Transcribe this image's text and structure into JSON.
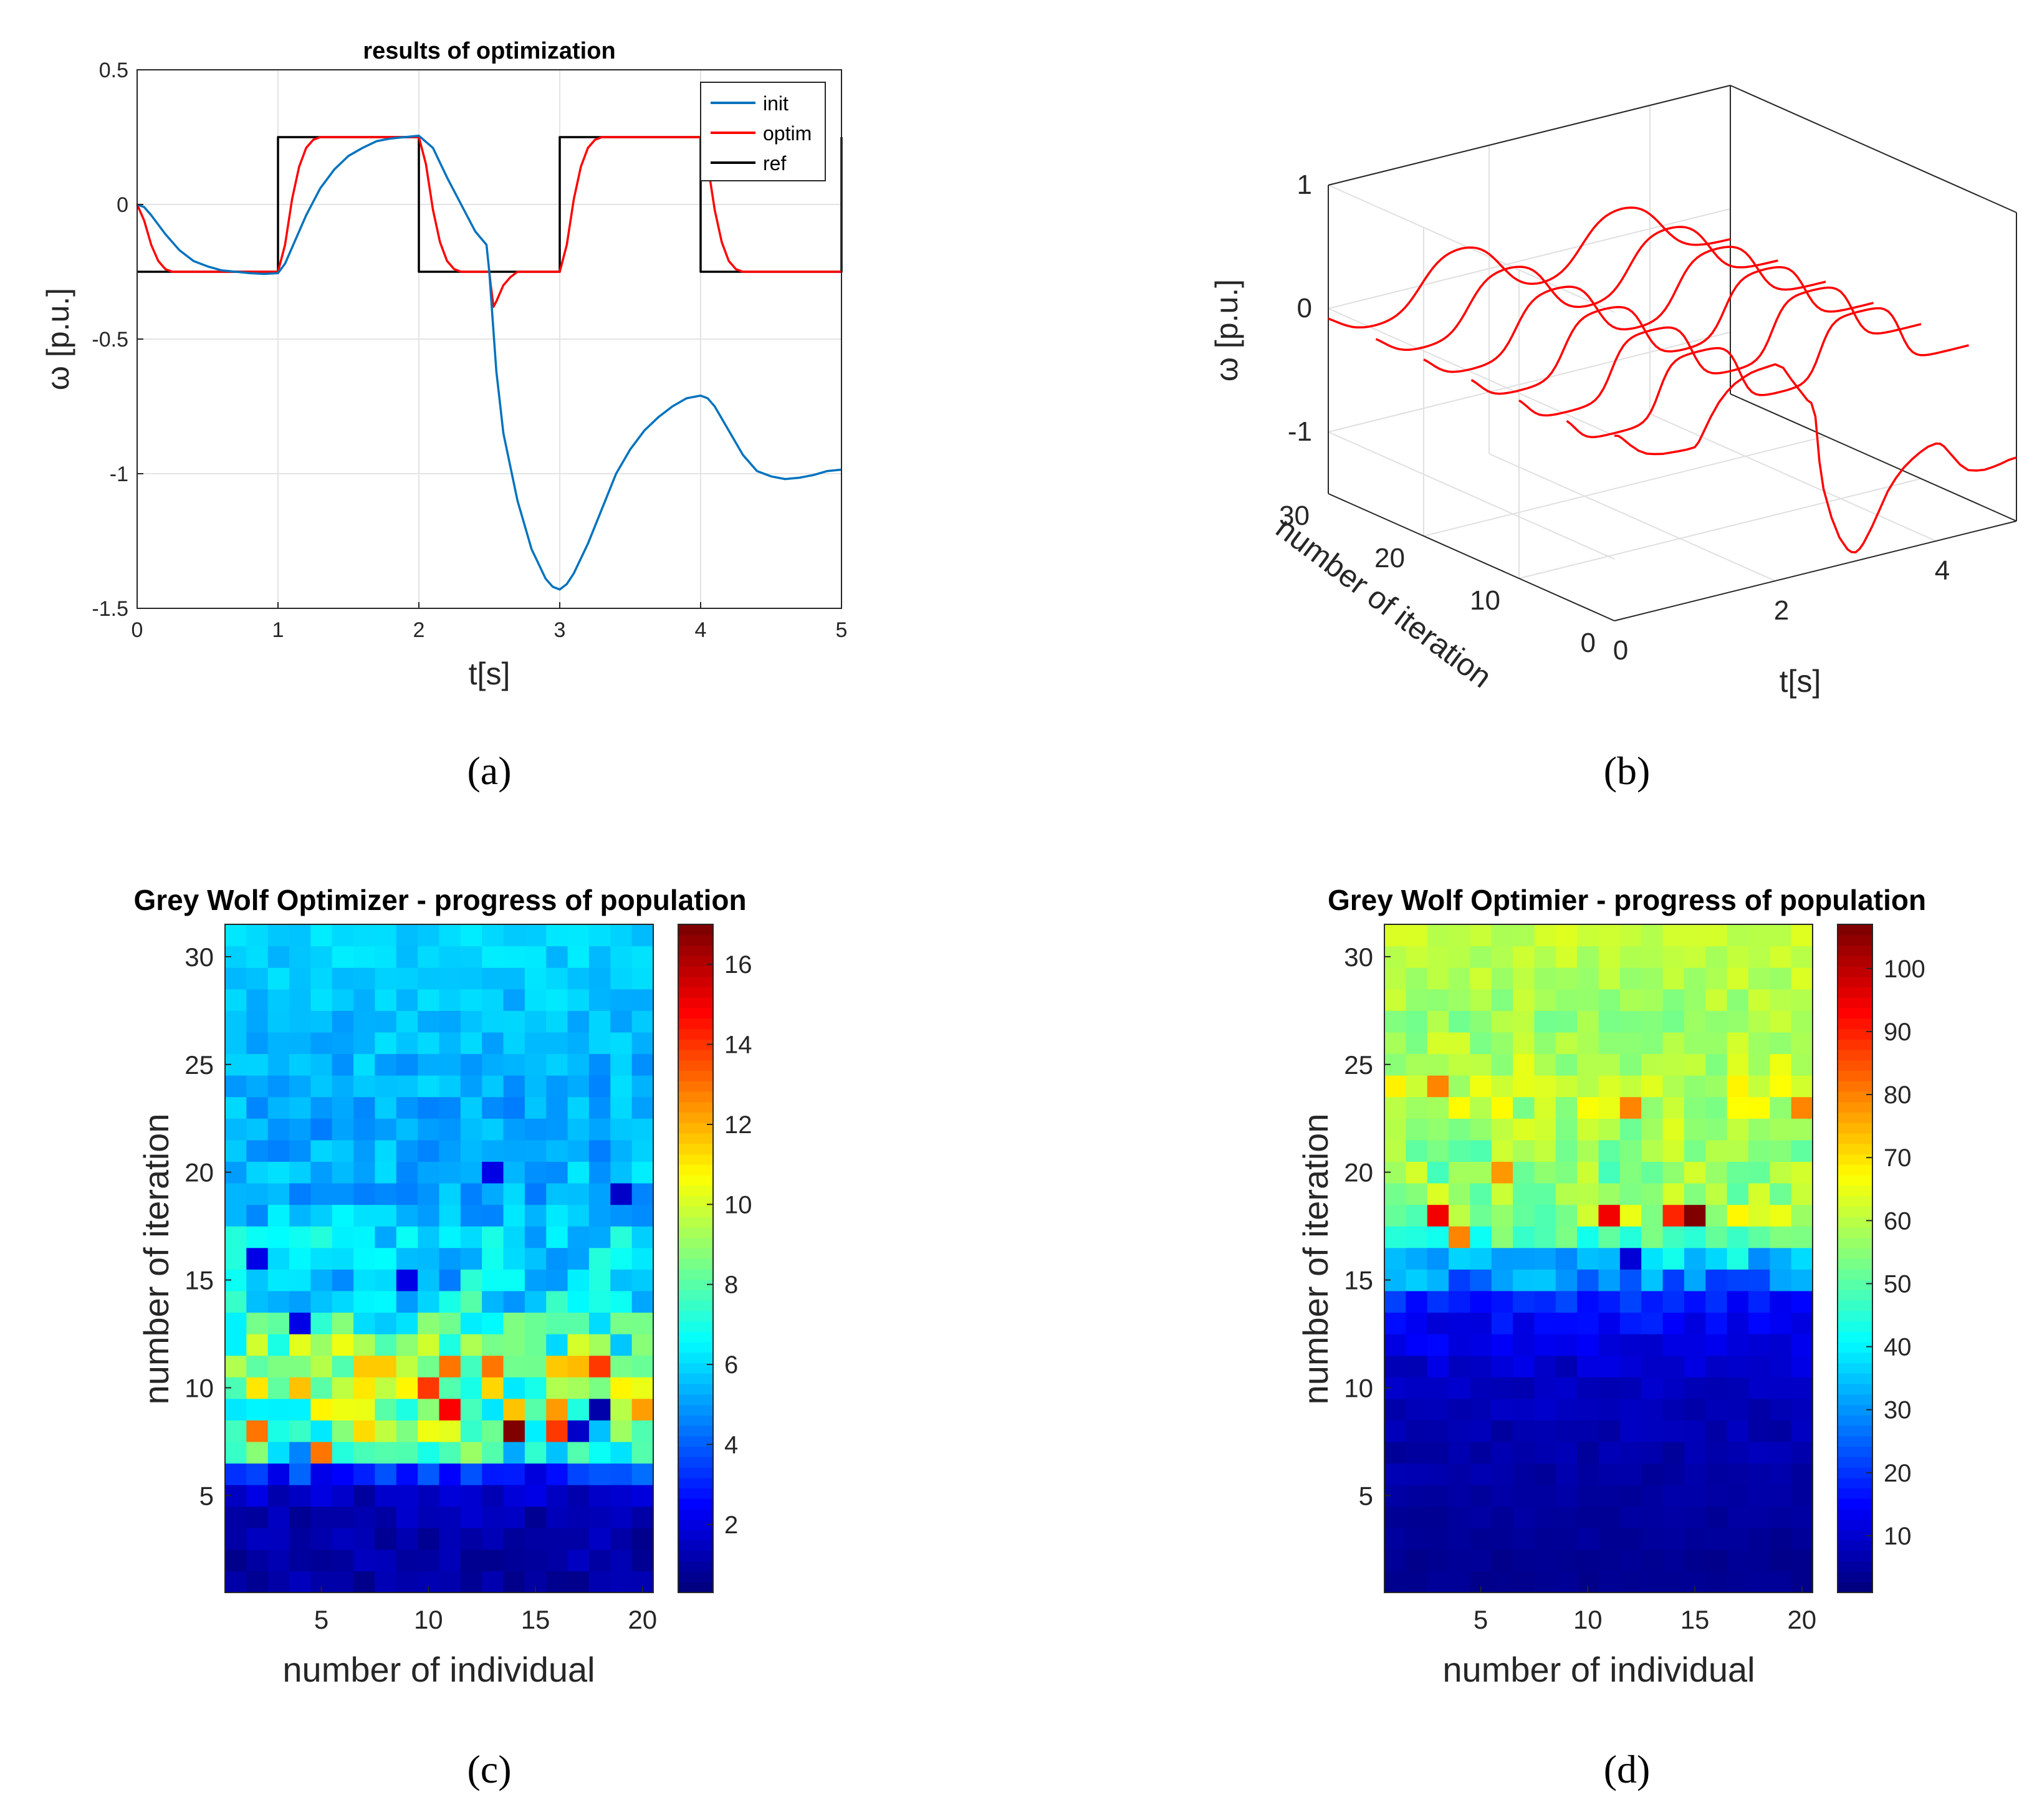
{
  "captions": {
    "a": "(a)",
    "b": "(b)",
    "c": "(c)",
    "d": "(d)"
  },
  "colors": {
    "init": "#0072BD",
    "optim": "#FF0000",
    "ref": "#000000",
    "grid": "#e3e3e3",
    "axis": "#262626"
  },
  "chart_data": [
    {
      "id": "a",
      "type": "line",
      "title": "results of optimization",
      "xlabel": "t[s]",
      "ylabel": "ω [p.u.]",
      "xlim": [
        0,
        5
      ],
      "ylim": [
        -1.5,
        0.5
      ],
      "xticks": [
        "0",
        "1",
        "2",
        "3",
        "4",
        "5"
      ],
      "yticks": [
        "0.5",
        "0",
        "-0.5",
        "-1",
        "-1.5"
      ],
      "grid": true,
      "legend_position": "top-right",
      "series": [
        {
          "name": "init",
          "x": [
            0,
            0.05,
            0.1,
            0.2,
            0.3,
            0.4,
            0.5,
            0.6,
            0.7,
            0.8,
            0.9,
            1.0,
            1.05,
            1.1,
            1.2,
            1.3,
            1.4,
            1.5,
            1.6,
            1.7,
            1.8,
            1.9,
            2.0,
            2.1,
            2.2,
            2.3,
            2.4,
            2.48,
            2.5,
            2.52,
            2.55,
            2.6,
            2.7,
            2.8,
            2.9,
            2.95,
            3.0,
            3.05,
            3.1,
            3.2,
            3.3,
            3.4,
            3.5,
            3.6,
            3.7,
            3.8,
            3.9,
            4.0,
            4.05,
            4.1,
            4.2,
            4.3,
            4.4,
            4.5,
            4.6,
            4.7,
            4.8,
            4.9,
            5.0
          ],
          "y": [
            0,
            -0.01,
            -0.04,
            -0.11,
            -0.17,
            -0.21,
            -0.23,
            -0.245,
            -0.25,
            -0.255,
            -0.258,
            -0.255,
            -0.22,
            -0.16,
            -0.04,
            0.06,
            0.13,
            0.18,
            0.21,
            0.235,
            0.245,
            0.25,
            0.255,
            0.21,
            0.1,
            0.0,
            -0.1,
            -0.15,
            -0.25,
            -0.4,
            -0.62,
            -0.85,
            -1.1,
            -1.28,
            -1.39,
            -1.42,
            -1.43,
            -1.41,
            -1.37,
            -1.26,
            -1.13,
            -1.0,
            -0.91,
            -0.84,
            -0.79,
            -0.75,
            -0.72,
            -0.71,
            -0.72,
            -0.75,
            -0.84,
            -0.93,
            -0.99,
            -1.01,
            -1.02,
            -1.015,
            -1.005,
            -0.99,
            -0.985
          ]
        },
        {
          "name": "optim",
          "x": [
            0,
            0.05,
            0.1,
            0.15,
            0.2,
            0.25,
            0.3,
            0.4,
            0.5,
            1.0,
            1.05,
            1.1,
            1.15,
            1.2,
            1.25,
            1.3,
            1.4,
            1.5,
            2.0,
            2.05,
            2.1,
            2.15,
            2.2,
            2.25,
            2.3,
            2.35,
            2.4,
            2.45,
            2.5,
            2.51,
            2.53,
            2.55,
            2.6,
            2.65,
            2.7,
            2.8,
            3.0,
            3.05,
            3.1,
            3.15,
            3.2,
            3.25,
            3.3,
            3.4,
            3.5,
            4.0,
            4.05,
            4.1,
            4.15,
            4.2,
            4.25,
            4.3,
            4.4,
            4.5,
            5.0
          ],
          "y": [
            0,
            -0.06,
            -0.15,
            -0.21,
            -0.24,
            -0.25,
            -0.25,
            -0.25,
            -0.25,
            -0.25,
            -0.15,
            0.02,
            0.14,
            0.21,
            0.24,
            0.25,
            0.25,
            0.25,
            0.25,
            0.15,
            -0.02,
            -0.14,
            -0.21,
            -0.24,
            -0.25,
            -0.25,
            -0.25,
            -0.25,
            -0.25,
            -0.3,
            -0.38,
            -0.36,
            -0.3,
            -0.27,
            -0.25,
            -0.25,
            -0.25,
            -0.15,
            0.02,
            0.14,
            0.21,
            0.24,
            0.25,
            0.25,
            0.25,
            0.25,
            0.15,
            -0.02,
            -0.14,
            -0.21,
            -0.24,
            -0.25,
            -0.25,
            -0.25,
            -0.25
          ]
        },
        {
          "name": "ref",
          "x": [
            0,
            1,
            1,
            2,
            2,
            3,
            3,
            4,
            4,
            5,
            5
          ],
          "y": [
            -0.25,
            -0.25,
            0.25,
            0.25,
            -0.25,
            -0.25,
            0.25,
            0.25,
            -0.25,
            -0.25,
            0.25
          ]
        }
      ]
    },
    {
      "id": "b",
      "type": "line",
      "subtype": "3d-waterfall",
      "xlabel": "t[s]",
      "ylabel": "number of iteration",
      "zlabel": "ω [p.u.]",
      "xlim": [
        0,
        5
      ],
      "ylim": [
        0,
        30
      ],
      "zlim": [
        -1.5,
        1
      ],
      "xticks": [
        "0",
        "2",
        "4"
      ],
      "yticks": [
        "0",
        "10",
        "20",
        "30"
      ],
      "zticks": [
        "1",
        "0",
        "-1"
      ],
      "grid": true,
      "iterations": [
        30,
        25,
        20,
        15,
        10,
        5,
        0
      ],
      "series_color": "#FF0000"
    },
    {
      "id": "c",
      "type": "heatmap",
      "title": "Grey Wolf Optimizer - progress of population",
      "xlabel": "number of individual",
      "ylabel": "number of iteration",
      "xticks": [
        "5",
        "10",
        "15",
        "20"
      ],
      "yticks": [
        "30",
        "25",
        "20",
        "15",
        "10",
        "5"
      ],
      "colorbar_ticks": [
        "16",
        "14",
        "12",
        "10",
        "8",
        "6",
        "4",
        "2"
      ],
      "clim": [
        0.3,
        17
      ],
      "colormap": "jet",
      "rows": 31,
      "cols": 20,
      "row_profile": [
        0.8,
        0.9,
        1.0,
        1.2,
        1.4,
        3.0,
        7.0,
        8.5,
        9.0,
        9.5,
        9.0,
        8.0,
        7.2,
        6.5,
        5.8,
        6.0,
        6.0,
        5.5,
        5.2,
        5.5,
        5.2,
        5.0,
        5.2,
        5.3,
        5.4,
        5.5,
        5.5,
        5.6,
        5.7,
        5.8,
        5.8
      ],
      "row_spread": [
        0.5,
        0.5,
        0.5,
        0.6,
        0.6,
        1.2,
        2.5,
        3.0,
        3.5,
        3.5,
        3.0,
        2.5,
        2.0,
        1.8,
        1.5,
        1.2,
        1.2,
        1.0,
        0.9,
        0.9,
        0.8,
        0.8,
        0.8,
        0.8,
        0.7,
        0.6,
        0.6,
        0.6,
        0.5,
        0.5,
        0.5
      ],
      "hot_cells": [
        {
          "col": 14,
          "row": 8,
          "value": 17
        },
        {
          "col": 11,
          "row": 9,
          "value": 15
        },
        {
          "col": 2,
          "row": 8,
          "value": 13
        },
        {
          "col": 16,
          "row": 8,
          "value": 14
        },
        {
          "col": 10,
          "row": 10,
          "value": 14
        },
        {
          "col": 18,
          "row": 11,
          "value": 14
        },
        {
          "col": 13,
          "row": 11,
          "value": 13
        },
        {
          "col": 11,
          "row": 11,
          "value": 13
        },
        {
          "col": 5,
          "row": 7,
          "value": 13
        },
        {
          "col": 18,
          "row": 9,
          "value": 1
        },
        {
          "col": 17,
          "row": 8,
          "value": 1.5
        },
        {
          "col": 19,
          "row": 19,
          "value": 1.5
        },
        {
          "col": 13,
          "row": 20,
          "value": 2
        },
        {
          "col": 2,
          "row": 16,
          "value": 2
        },
        {
          "col": 4,
          "row": 13,
          "value": 2
        },
        {
          "col": 9,
          "row": 15,
          "value": 2
        }
      ]
    },
    {
      "id": "d",
      "type": "heatmap",
      "title": "Grey Wolf Optimier - progress of population",
      "xlabel": "number of individual",
      "ylabel": "number of iteration",
      "xticks": [
        "5",
        "10",
        "15",
        "20"
      ],
      "yticks": [
        "30",
        "25",
        "20",
        "15",
        "10",
        "5"
      ],
      "colorbar_ticks": [
        "100",
        "90",
        "80",
        "70",
        "60",
        "50",
        "40",
        "30",
        "20",
        "10"
      ],
      "clim": [
        1,
        107
      ],
      "colormap": "jet",
      "rows": 31,
      "cols": 20,
      "row_profile": [
        3,
        3,
        3.5,
        4,
        4.5,
        5,
        5.5,
        6,
        7,
        8,
        9,
        12,
        14,
        17,
        28,
        36,
        48,
        58,
        56,
        55,
        56,
        58,
        60,
        62,
        60,
        58,
        57,
        58,
        60,
        60,
        61
      ],
      "row_spread": [
        1,
        1,
        1,
        1,
        1,
        1.5,
        2,
        2,
        2,
        2,
        3,
        3,
        4,
        5,
        8,
        8,
        8,
        10,
        8,
        8,
        7,
        7,
        8,
        7,
        6,
        5,
        5,
        4,
        4,
        3,
        3
      ],
      "hot_cells": [
        {
          "col": 15,
          "row": 18,
          "value": 107
        },
        {
          "col": 3,
          "row": 18,
          "value": 95
        },
        {
          "col": 11,
          "row": 18,
          "value": 95
        },
        {
          "col": 14,
          "row": 18,
          "value": 90
        },
        {
          "col": 4,
          "row": 17,
          "value": 80
        },
        {
          "col": 20,
          "row": 23,
          "value": 80
        },
        {
          "col": 12,
          "row": 23,
          "value": 80
        },
        {
          "col": 3,
          "row": 24,
          "value": 80
        },
        {
          "col": 6,
          "row": 20,
          "value": 78
        },
        {
          "col": 12,
          "row": 16,
          "value": 10
        }
      ]
    }
  ]
}
